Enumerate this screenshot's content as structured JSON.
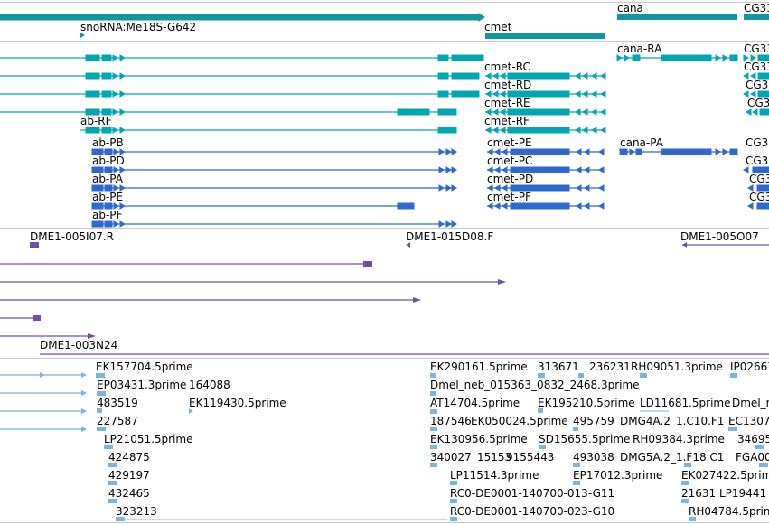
{
  "colors": {
    "gene": "#12969f",
    "transcript": "#00a6b0",
    "protein": "#2f68cf",
    "clone": "#6e4fa6",
    "est": "#7eb4d8",
    "separator": "#c9c9c9"
  },
  "gene_track": {
    "labels": [
      "snoRNA:Me18S-G642",
      "cmet",
      "cana",
      "CG33"
    ]
  },
  "transcript_track": {
    "labels": [
      "cana-RA",
      "CG33",
      "cmet-RC",
      "CG33",
      "cmet-RD",
      "CG3",
      "cmet-RE",
      "CG3",
      "ab-RF",
      "cmet-RF"
    ]
  },
  "protein_track": {
    "labels": [
      "ab-PB",
      "cmet-PE",
      "cana-PA",
      "CG3",
      "ab-PD",
      "cmet-PC",
      "CG3",
      "ab-PA",
      "cmet-PD",
      "CG3",
      "ab-PE",
      "cmet-PF",
      "CG3",
      "ab-PF"
    ]
  },
  "clone_track": {
    "labels": [
      "DME1-005I07.R",
      "DME1-015D08.F",
      "DME1-005O07",
      "DME1-003N24"
    ]
  },
  "est_track": {
    "labels": [
      "EK157704.5prime",
      "EK290161.5prime",
      "313671",
      "236231",
      "RH09051.3prime",
      "IP02667",
      "EP03431.3prime",
      "164088",
      "Dmel_neb_015363_0832_2468.3prime",
      "483519",
      "EK119430.5prime",
      "AT14704.5prime",
      "EK195210.5prime",
      "LD11681.5prime",
      "Dmel_n",
      "227587",
      "187546",
      "EK050024.5prime",
      "495759",
      "DMG4A.2_1.C10.F1",
      "EC1307",
      "LP21051.5prime",
      "EK130956.5prime",
      "SD15655.5prime",
      "RH09384.3prime",
      "34695",
      "424875",
      "340027",
      "15153",
      "9155443",
      "493038",
      "DMG5A.2_1.F18.C1",
      "FGA00",
      "429197",
      "LP11514.3prime",
      "EP17012.3prime",
      "EK027422.5prime",
      "432465",
      "RC0-DE0001-140700-013-G11",
      "21631",
      "LP19441",
      "323213",
      "RC0-DE0001-140700-023-G10",
      "RH04784.5prime"
    ]
  }
}
